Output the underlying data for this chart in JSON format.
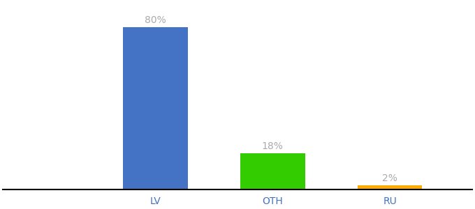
{
  "categories": [
    "LV",
    "OTH",
    "RU"
  ],
  "values": [
    80,
    18,
    2
  ],
  "bar_colors": [
    "#4472c4",
    "#33cc00",
    "#ffaa00"
  ],
  "labels": [
    "80%",
    "18%",
    "2%"
  ],
  "background_color": "#ffffff",
  "label_color": "#aaaaaa",
  "xlabel_color": "#4472c4",
  "ylim": [
    0,
    92
  ],
  "bar_width": 0.55,
  "label_fontsize": 10,
  "tick_fontsize": 10,
  "xlim": [
    -0.5,
    3.5
  ]
}
